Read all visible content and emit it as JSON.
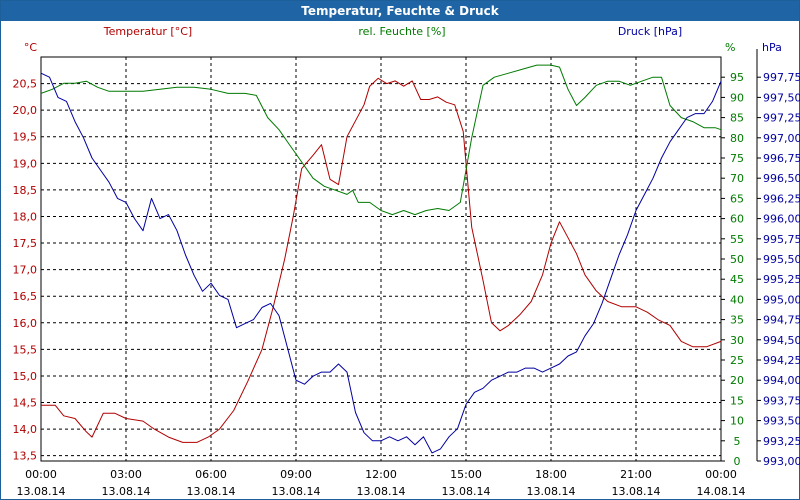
{
  "chart_data": {
    "type": "line",
    "title": "Temperatur, Feuchte & Druck",
    "axes": {
      "temperature": {
        "label": "Temperatur [°C]",
        "unit": "°C",
        "color": "#b00000",
        "range": [
          13.4,
          21.0
        ],
        "ticks": [
          "20,5",
          "20,0",
          "19,5",
          "19,0",
          "18,5",
          "18,0",
          "17,5",
          "17,0",
          "16,5",
          "16,0",
          "15,5",
          "15,0",
          "14,5",
          "14,0",
          "13,5"
        ],
        "tick_values": [
          20.5,
          20.0,
          19.5,
          19.0,
          18.5,
          18.0,
          17.5,
          17.0,
          16.5,
          16.0,
          15.5,
          15.0,
          14.5,
          14.0,
          13.5
        ]
      },
      "humidity": {
        "label": "rel. Feuchte [%]",
        "unit": "%",
        "color": "#007a00",
        "range": [
          0,
          100
        ],
        "ticks": [
          "95",
          "90",
          "85",
          "80",
          "75",
          "70",
          "65",
          "60",
          "55",
          "50",
          "45",
          "40",
          "35",
          "30",
          "25",
          "20",
          "15",
          "10",
          "5",
          "0"
        ],
        "tick_values": [
          95,
          90,
          85,
          80,
          75,
          70,
          65,
          60,
          55,
          50,
          45,
          40,
          35,
          30,
          25,
          20,
          15,
          10,
          5,
          0
        ]
      },
      "pressure": {
        "label": "Druck [hPa]",
        "unit": "hPa",
        "color": "#0000a0",
        "range": [
          993.0,
          998.0
        ],
        "ticks": [
          "997,75",
          "997,50",
          "997,25",
          "997,00",
          "996,75",
          "996,50",
          "996,25",
          "996,00",
          "995,75",
          "995,50",
          "995,25",
          "995,00",
          "994,75",
          "994,50",
          "994,25",
          "994,00",
          "993,75",
          "993,50",
          "993,25",
          "993,00"
        ],
        "tick_values": [
          997.75,
          997.5,
          997.25,
          997.0,
          996.75,
          996.5,
          996.25,
          996.0,
          995.75,
          995.5,
          995.25,
          995.0,
          994.75,
          994.5,
          994.25,
          994.0,
          993.75,
          993.5,
          993.25,
          993.0
        ]
      }
    },
    "x_ticks": [
      {
        "time": "00:00",
        "date": "13.08.14",
        "h": 0
      },
      {
        "time": "03:00",
        "date": "13.08.14",
        "h": 3
      },
      {
        "time": "06:00",
        "date": "13.08.14",
        "h": 6
      },
      {
        "time": "09:00",
        "date": "13.08.14",
        "h": 9
      },
      {
        "time": "12:00",
        "date": "13.08.14",
        "h": 12
      },
      {
        "time": "15:00",
        "date": "13.08.14",
        "h": 15
      },
      {
        "time": "18:00",
        "date": "13.08.14",
        "h": 18
      },
      {
        "time": "21:00",
        "date": "13.08.14",
        "h": 21
      },
      {
        "time": "00:00",
        "date": "14.08.14",
        "h": 24
      }
    ],
    "x_range_hours": [
      0,
      24
    ],
    "grid": true,
    "series": [
      {
        "name": "Temperatur [°C]",
        "axis": "temperature",
        "color": "#b00000",
        "points": [
          [
            0,
            14.45
          ],
          [
            0.5,
            14.45
          ],
          [
            0.8,
            14.25
          ],
          [
            1.2,
            14.2
          ],
          [
            1.6,
            13.95
          ],
          [
            1.8,
            13.85
          ],
          [
            2.2,
            14.3
          ],
          [
            2.6,
            14.3
          ],
          [
            3.0,
            14.2
          ],
          [
            3.6,
            14.15
          ],
          [
            4.0,
            14.0
          ],
          [
            4.5,
            13.85
          ],
          [
            5.0,
            13.75
          ],
          [
            5.5,
            13.75
          ],
          [
            5.9,
            13.85
          ],
          [
            6.3,
            14.0
          ],
          [
            6.8,
            14.35
          ],
          [
            7.3,
            14.9
          ],
          [
            7.8,
            15.5
          ],
          [
            8.2,
            16.3
          ],
          [
            8.6,
            17.2
          ],
          [
            8.9,
            18.0
          ],
          [
            9.2,
            18.9
          ],
          [
            9.6,
            19.15
          ],
          [
            9.9,
            19.35
          ],
          [
            10.2,
            18.7
          ],
          [
            10.5,
            18.6
          ],
          [
            10.8,
            19.5
          ],
          [
            11.1,
            19.8
          ],
          [
            11.4,
            20.1
          ],
          [
            11.6,
            20.45
          ],
          [
            11.9,
            20.6
          ],
          [
            12.2,
            20.5
          ],
          [
            12.5,
            20.55
          ],
          [
            12.8,
            20.45
          ],
          [
            13.1,
            20.55
          ],
          [
            13.4,
            20.2
          ],
          [
            13.7,
            20.2
          ],
          [
            14.0,
            20.25
          ],
          [
            14.3,
            20.15
          ],
          [
            14.6,
            20.1
          ],
          [
            14.9,
            19.6
          ],
          [
            15.2,
            17.8
          ],
          [
            15.6,
            16.8
          ],
          [
            15.9,
            16.0
          ],
          [
            16.2,
            15.85
          ],
          [
            16.5,
            15.95
          ],
          [
            16.9,
            16.15
          ],
          [
            17.3,
            16.4
          ],
          [
            17.7,
            16.9
          ],
          [
            18.0,
            17.5
          ],
          [
            18.3,
            17.9
          ],
          [
            18.6,
            17.6
          ],
          [
            18.9,
            17.3
          ],
          [
            19.2,
            16.9
          ],
          [
            19.6,
            16.6
          ],
          [
            20.0,
            16.4
          ],
          [
            20.5,
            16.3
          ],
          [
            21.0,
            16.3
          ],
          [
            21.4,
            16.2
          ],
          [
            21.8,
            16.05
          ],
          [
            22.2,
            15.95
          ],
          [
            22.6,
            15.65
          ],
          [
            23.0,
            15.55
          ],
          [
            23.5,
            15.55
          ],
          [
            24.0,
            15.65
          ]
        ]
      },
      {
        "name": "rel. Feuchte [%]",
        "axis": "humidity",
        "color": "#007a00",
        "points": [
          [
            0,
            91
          ],
          [
            0.4,
            92
          ],
          [
            0.8,
            93.5
          ],
          [
            1.2,
            93.5
          ],
          [
            1.6,
            94
          ],
          [
            2.0,
            92.5
          ],
          [
            2.4,
            91.5
          ],
          [
            3.0,
            91.5
          ],
          [
            3.6,
            91.5
          ],
          [
            4.2,
            92
          ],
          [
            4.8,
            92.5
          ],
          [
            5.4,
            92.5
          ],
          [
            6.0,
            92
          ],
          [
            6.6,
            91
          ],
          [
            7.2,
            91
          ],
          [
            7.6,
            90.5
          ],
          [
            8.0,
            85
          ],
          [
            8.4,
            82
          ],
          [
            8.8,
            78
          ],
          [
            9.2,
            74
          ],
          [
            9.6,
            70
          ],
          [
            10.0,
            68
          ],
          [
            10.4,
            67
          ],
          [
            10.8,
            66
          ],
          [
            11.0,
            67
          ],
          [
            11.2,
            64
          ],
          [
            11.6,
            64
          ],
          [
            12.0,
            62
          ],
          [
            12.4,
            61
          ],
          [
            12.8,
            62
          ],
          [
            13.2,
            61
          ],
          [
            13.6,
            62
          ],
          [
            14.0,
            62.5
          ],
          [
            14.4,
            62
          ],
          [
            14.8,
            64
          ],
          [
            15.2,
            80
          ],
          [
            15.6,
            93
          ],
          [
            16.0,
            95
          ],
          [
            16.5,
            96
          ],
          [
            17.0,
            97
          ],
          [
            17.5,
            98
          ],
          [
            18.0,
            98
          ],
          [
            18.3,
            97.5
          ],
          [
            18.6,
            92
          ],
          [
            18.9,
            88
          ],
          [
            19.2,
            90
          ],
          [
            19.6,
            93
          ],
          [
            20.0,
            94
          ],
          [
            20.4,
            94
          ],
          [
            20.8,
            93
          ],
          [
            21.2,
            94
          ],
          [
            21.6,
            95
          ],
          [
            21.9,
            95
          ],
          [
            22.2,
            88
          ],
          [
            22.6,
            85
          ],
          [
            23.0,
            84
          ],
          [
            23.4,
            82.5
          ],
          [
            23.8,
            82.5
          ],
          [
            24.0,
            82
          ]
        ]
      },
      {
        "name": "Druck [hPa]",
        "axis": "pressure",
        "color": "#0000a0",
        "points": [
          [
            0,
            997.8
          ],
          [
            0.3,
            997.75
          ],
          [
            0.6,
            997.5
          ],
          [
            0.9,
            997.45
          ],
          [
            1.2,
            997.2
          ],
          [
            1.5,
            997.0
          ],
          [
            1.8,
            996.75
          ],
          [
            2.1,
            996.6
          ],
          [
            2.4,
            996.45
          ],
          [
            2.7,
            996.25
          ],
          [
            3.0,
            996.2
          ],
          [
            3.3,
            996.0
          ],
          [
            3.6,
            995.85
          ],
          [
            3.9,
            996.25
          ],
          [
            4.2,
            996.0
          ],
          [
            4.5,
            996.05
          ],
          [
            4.8,
            995.85
          ],
          [
            5.1,
            995.55
          ],
          [
            5.4,
            995.3
          ],
          [
            5.7,
            995.1
          ],
          [
            6.0,
            995.2
          ],
          [
            6.3,
            995.05
          ],
          [
            6.6,
            995.0
          ],
          [
            6.9,
            994.65
          ],
          [
            7.2,
            994.7
          ],
          [
            7.5,
            994.75
          ],
          [
            7.8,
            994.9
          ],
          [
            8.1,
            994.95
          ],
          [
            8.4,
            994.8
          ],
          [
            8.7,
            994.4
          ],
          [
            9.0,
            994.0
          ],
          [
            9.3,
            993.95
          ],
          [
            9.6,
            994.05
          ],
          [
            9.9,
            994.1
          ],
          [
            10.2,
            994.1
          ],
          [
            10.5,
            994.2
          ],
          [
            10.8,
            994.1
          ],
          [
            11.1,
            993.6
          ],
          [
            11.4,
            993.35
          ],
          [
            11.7,
            993.25
          ],
          [
            12.0,
            993.25
          ],
          [
            12.3,
            993.3
          ],
          [
            12.6,
            993.25
          ],
          [
            12.9,
            993.3
          ],
          [
            13.2,
            993.2
          ],
          [
            13.5,
            993.3
          ],
          [
            13.8,
            993.1
          ],
          [
            14.1,
            993.15
          ],
          [
            14.4,
            993.3
          ],
          [
            14.7,
            993.4
          ],
          [
            15.0,
            993.7
          ],
          [
            15.3,
            993.85
          ],
          [
            15.6,
            993.9
          ],
          [
            15.9,
            994.0
          ],
          [
            16.2,
            994.05
          ],
          [
            16.5,
            994.1
          ],
          [
            16.8,
            994.1
          ],
          [
            17.1,
            994.15
          ],
          [
            17.4,
            994.15
          ],
          [
            17.7,
            994.1
          ],
          [
            18.0,
            994.15
          ],
          [
            18.3,
            994.2
          ],
          [
            18.6,
            994.3
          ],
          [
            18.9,
            994.35
          ],
          [
            19.2,
            994.55
          ],
          [
            19.5,
            994.7
          ],
          [
            19.8,
            994.95
          ],
          [
            20.1,
            995.25
          ],
          [
            20.4,
            995.55
          ],
          [
            20.7,
            995.8
          ],
          [
            21.0,
            996.1
          ],
          [
            21.3,
            996.3
          ],
          [
            21.6,
            996.5
          ],
          [
            21.9,
            996.75
          ],
          [
            22.2,
            996.95
          ],
          [
            22.5,
            997.1
          ],
          [
            22.8,
            997.25
          ],
          [
            23.1,
            997.3
          ],
          [
            23.4,
            997.3
          ],
          [
            23.7,
            997.45
          ],
          [
            24.0,
            997.7
          ]
        ]
      }
    ]
  }
}
